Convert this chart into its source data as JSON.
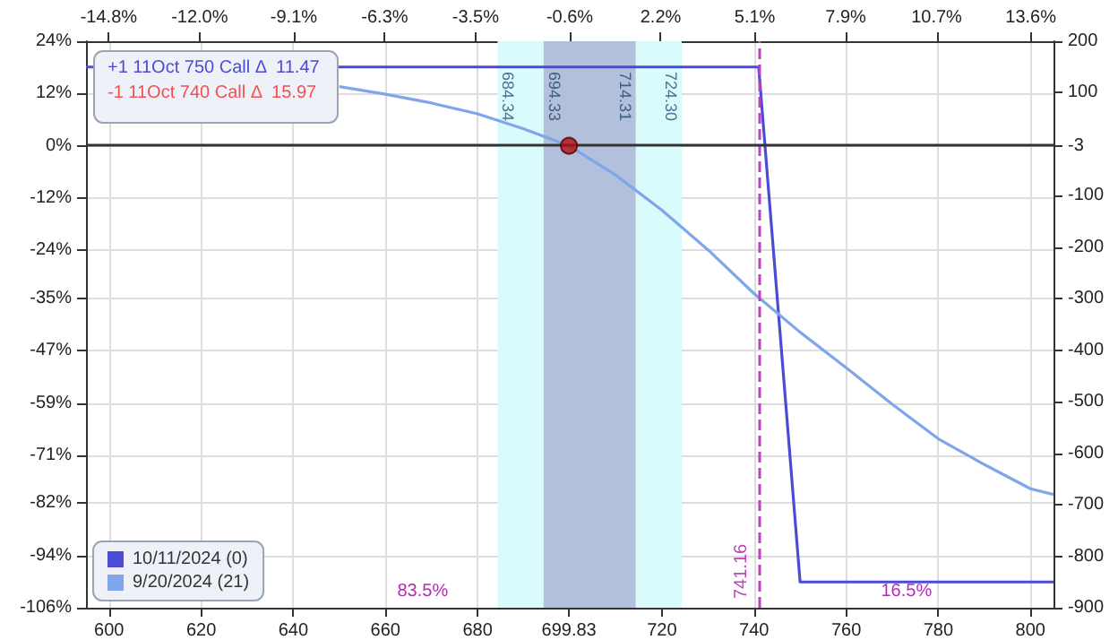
{
  "chart_data": {
    "type": "line",
    "annotations": [
      "+1 11Oct 750 Call Δ  11.47",
      "-1 11Oct 740 Call Δ  15.97",
      "83.5%",
      "16.5%",
      {
        "text": "684.34",
        "x": 684.34
      },
      {
        "text": "694.33",
        "x": 694.33
      },
      {
        "text": "714.31",
        "x": 714.31
      },
      {
        "text": "724.30",
        "x": 724.3
      }
    ],
    "series": [
      {
        "name": "10/11/2024 (0)",
        "color": "#4b4bd6",
        "axis": "y2",
        "x": [
          595,
          741,
          750,
          805
        ],
        "values": [
          150,
          150,
          -850,
          -850
        ]
      },
      {
        "name": "9/20/2024 (21)",
        "color": "#7fa6ea",
        "axis": "y2",
        "x": [
          650,
          660,
          670,
          680,
          690,
          699.83,
          710,
          720,
          730,
          740,
          750,
          760,
          770,
          780,
          790,
          800,
          805
        ],
        "values": [
          112,
          97,
          80,
          59,
          30,
          -3,
          -60,
          -128,
          -205,
          -290,
          -365,
          -434,
          -505,
          -572,
          -622,
          -669,
          -680
        ]
      },
      {
        "type": "scatter",
        "marker": "circle",
        "axis": "y2",
        "color": "#b01010",
        "x": [
          699.83
        ],
        "values": [
          -3
        ]
      }
    ],
    "xlim": [
      595,
      805
    ],
    "xticks": [
      600,
      620,
      640,
      660,
      680,
      699.83,
      720,
      740,
      760,
      780,
      800
    ],
    "x2lim": [
      -15.5,
      14.3
    ],
    "x2ticks": [
      {
        "value": -14.8,
        "label": "-14.8%"
      },
      {
        "value": -12,
        "label": "-12.0%"
      },
      {
        "value": -9.1,
        "label": "-9.1%"
      },
      {
        "value": -6.3,
        "label": "-6.3%"
      },
      {
        "value": -3.5,
        "label": "-3.5%"
      },
      {
        "value": -0.6,
        "label": "-0.6%"
      },
      {
        "value": 2.2,
        "label": "2.2%"
      },
      {
        "value": 5.1,
        "label": "5.1%"
      },
      {
        "value": 7.9,
        "label": "7.9%"
      },
      {
        "value": 10.7,
        "label": "10.7%"
      },
      {
        "value": 13.6,
        "label": "13.6%"
      }
    ],
    "ylim": [
      -106,
      24
    ],
    "yticks": [
      {
        "value": 24,
        "label": "24%"
      },
      {
        "value": 12,
        "label": "12%"
      },
      {
        "value": 0,
        "label": "0%"
      },
      {
        "value": -12,
        "label": "-12%"
      },
      {
        "value": -24,
        "label": "-24%"
      },
      {
        "value": -35,
        "label": "-35%"
      },
      {
        "value": -47,
        "label": "-47%"
      },
      {
        "value": -59,
        "label": "-59%"
      },
      {
        "value": -71,
        "label": "-71%"
      },
      {
        "value": -82,
        "label": "-82%"
      },
      {
        "value": -94,
        "label": "-94%"
      },
      {
        "value": -106,
        "label": "-106%"
      }
    ],
    "y2lim": [
      -900,
      200
    ],
    "y2ticks": [
      200,
      100,
      -3,
      -100,
      -200,
      -300,
      -400,
      -500,
      -600,
      -700,
      -800,
      -900
    ],
    "ref_lines": [
      {
        "axis": "x",
        "value": 741.16,
        "label": "741.16",
        "color": "#c040c0",
        "line_style": "dashed"
      },
      {
        "axis": "y",
        "value": 0,
        "color": "#333333",
        "line_style": "solid"
      }
    ],
    "bands": [
      {
        "axis": "x",
        "from": 684.34,
        "to": 724.3,
        "color": "#d9fbfb"
      },
      {
        "axis": "x",
        "from": 694.33,
        "to": 714.31,
        "color": "#b3c0dc"
      }
    ],
    "grid": true,
    "legend": "bottom left",
    "marker": "none",
    "line_style": "solid"
  }
}
